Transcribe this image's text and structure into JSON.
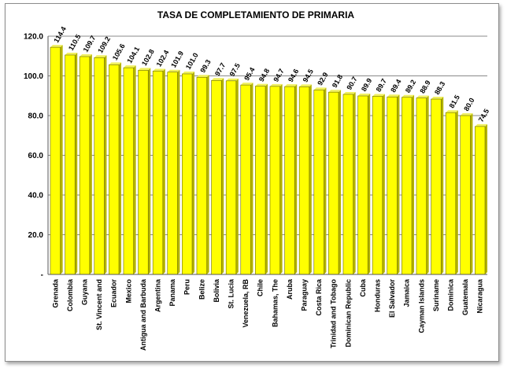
{
  "chart_data": {
    "type": "bar",
    "title": "TASA DE COMPLETAMIENTO DE PRIMARIA",
    "xlabel": "",
    "ylabel": "",
    "ylim": [
      0,
      120
    ],
    "yticks": [
      "-",
      "20.0",
      "40.0",
      "60.0",
      "80.0",
      "100.0",
      "120.0"
    ],
    "grid": true,
    "legend": "none",
    "bar_color": "#ffff00",
    "categories": [
      "Grenada",
      "Colombia",
      "Guyana",
      "St. Vincent and",
      "Ecuador",
      "Mexico",
      "Antigua and Barbuda",
      "Argentina",
      "Panama",
      "Peru",
      "Belize",
      "Bolivia",
      "St. Lucia",
      "Venezuela, RB",
      "Chile",
      "Bahamas, The",
      "Aruba",
      "Paraguay",
      "Costa Rica",
      "Trinidad and Tobago",
      "Dominican Republic",
      "Cuba",
      "Honduras",
      "El Salvador",
      "Jamaica",
      "Cayman Islands",
      "Suriname",
      "Dominica",
      "Guatemala",
      "Nicaragua"
    ],
    "values": [
      114.4,
      110.5,
      109.7,
      109.2,
      105.6,
      104.1,
      102.8,
      102.4,
      101.9,
      101.0,
      99.3,
      97.7,
      97.5,
      95.4,
      94.8,
      94.7,
      94.6,
      94.5,
      92.9,
      91.8,
      90.7,
      89.9,
      89.7,
      89.4,
      89.2,
      88.9,
      88.3,
      81.5,
      80.0,
      74.5
    ],
    "data_labels": [
      "114.4",
      "110.5",
      "109.7",
      "109.2",
      "105.6",
      "104.1",
      "102.8",
      "102.4",
      "101.9",
      "101.0",
      "99.3",
      "97.7",
      "97.5",
      "95.4",
      "94.8",
      "94.7",
      "94.6",
      "94.5",
      "92.9",
      "91.8",
      "90.7",
      "89.9",
      "89.7",
      "89.4",
      "89.2",
      "88.9",
      "88.3",
      "81.5",
      "80.0",
      "74.5"
    ]
  }
}
